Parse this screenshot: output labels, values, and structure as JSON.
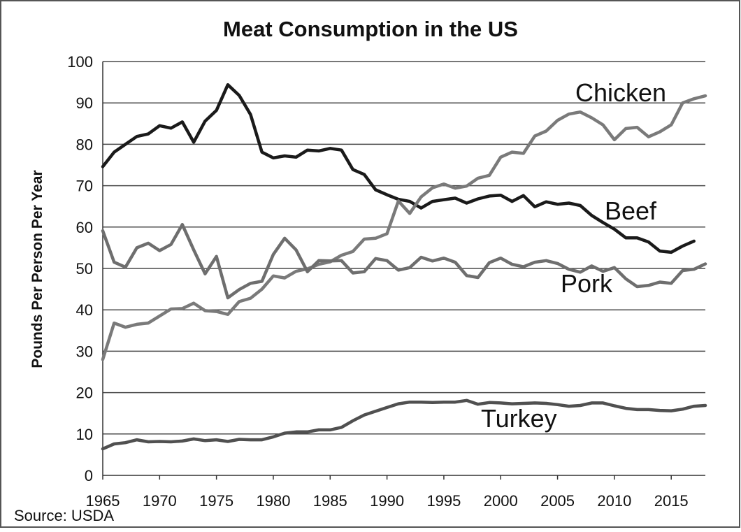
{
  "chart_data": {
    "type": "line",
    "title": "Meat Consumption in the US",
    "xlabel": "",
    "ylabel": "Pounds Per Person Per Year",
    "source": "Source: USDA",
    "xlim": [
      1965,
      2018
    ],
    "ylim": [
      0,
      100
    ],
    "x_ticks": [
      1965,
      1970,
      1975,
      1980,
      1985,
      1990,
      1995,
      2000,
      2005,
      2010,
      2015
    ],
    "y_ticks": [
      0,
      10,
      20,
      30,
      40,
      50,
      60,
      70,
      80,
      90,
      100
    ],
    "grid": true,
    "legend": "labels next to lines",
    "x": [
      1965,
      1966,
      1967,
      1968,
      1969,
      1970,
      1971,
      1972,
      1973,
      1974,
      1975,
      1976,
      1977,
      1978,
      1979,
      1980,
      1981,
      1982,
      1983,
      1984,
      1985,
      1986,
      1987,
      1988,
      1989,
      1990,
      1991,
      1992,
      1993,
      1994,
      1995,
      1996,
      1997,
      1998,
      1999,
      2000,
      2001,
      2002,
      2003,
      2004,
      2005,
      2006,
      2007,
      2008,
      2009,
      2010,
      2011,
      2012,
      2013,
      2014,
      2015,
      2016,
      2017,
      2018
    ],
    "series": [
      {
        "name": "Beef",
        "color": "#1a1a1a",
        "values": [
          74.6,
          78.1,
          80,
          81.9,
          82.5,
          84.5,
          83.9,
          85.4,
          80.5,
          85.6,
          88.2,
          94.4,
          91.8,
          87.2,
          78.1,
          76.7,
          77.2,
          76.9,
          78.6,
          78.4,
          79,
          78.6,
          73.9,
          72.7,
          69,
          67.8,
          66.7,
          66.2,
          64.6,
          66.2,
          66.6,
          67,
          65.8,
          66.8,
          67.5,
          67.7,
          66.2,
          67.6,
          64.9,
          66.1,
          65.5,
          65.8,
          65.2,
          62.8,
          61.1,
          59.5,
          57.4,
          57.4,
          56.4,
          54.2,
          53.9,
          55.4,
          56.6,
          null
        ]
      },
      {
        "name": "Chicken",
        "color": "#7a7a7a",
        "values": [
          28,
          36.8,
          35.8,
          36.5,
          36.8,
          38.5,
          40.2,
          40.3,
          41.6,
          39.8,
          39.6,
          38.9,
          42,
          42.8,
          45,
          48.2,
          47.7,
          49.3,
          49.9,
          51,
          51.6,
          53.2,
          54.1,
          57.1,
          57.3,
          58.4,
          66.3,
          63.3,
          67.3,
          69.5,
          70.4,
          69.4,
          69.9,
          71.8,
          72.5,
          76.9,
          78.1,
          77.8,
          82,
          83.2,
          85.8,
          87.3,
          87.8,
          86.4,
          84.7,
          81.1,
          83.8,
          84.1,
          81.8,
          83,
          84.7,
          90,
          91,
          91.7
        ]
      },
      {
        "name": "Pork",
        "color": "#6e6e6e",
        "values": [
          59.1,
          51.5,
          50.3,
          55,
          56.1,
          54.3,
          55.8,
          60.6,
          54.5,
          48.7,
          52.9,
          42.9,
          44.9,
          46.4,
          46.9,
          53.4,
          57.3,
          54.5,
          49.2,
          51.9,
          51.8,
          51.9,
          48.9,
          49.2,
          52.4,
          51.9,
          49.6,
          50.2,
          52.7,
          51.8,
          52.5,
          51.5,
          48.3,
          47.8,
          51.4,
          52.5,
          51,
          50.4,
          51.5,
          51.9,
          51.2,
          49.8,
          49.1,
          50.6,
          49.3,
          50.2,
          47.5,
          45.6,
          45.9,
          46.7,
          46.4,
          49.5,
          49.8,
          51.1
        ]
      },
      {
        "name": "Turkey",
        "color": "#505050",
        "values": [
          6.4,
          7.6,
          7.9,
          8.6,
          8.1,
          8.2,
          8.1,
          8.3,
          8.8,
          8.4,
          8.6,
          8.2,
          8.7,
          8.6,
          8.6,
          9.3,
          10.2,
          10.5,
          10.5,
          11,
          11,
          11.6,
          13.2,
          14.6,
          15.5,
          16.4,
          17.3,
          17.7,
          17.7,
          17.6,
          17.7,
          17.7,
          18.1,
          17.2,
          17.6,
          17.5,
          17.3,
          17.4,
          17.5,
          17.4,
          17.1,
          16.7,
          16.9,
          17.5,
          17.5,
          16.8,
          16.2,
          15.9,
          15.9,
          15.7,
          15.6,
          16,
          16.7,
          16.9
        ]
      }
    ]
  }
}
